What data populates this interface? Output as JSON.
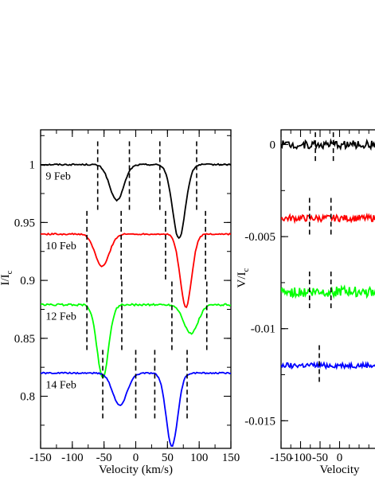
{
  "chart_data": [
    {
      "type": "line",
      "xlabel": "Velocity (km/s)",
      "ylabel": "I/I",
      "ylabel_sub": "c",
      "xlim": [
        -150,
        150
      ],
      "ylim": [
        0.755,
        1.03
      ],
      "xticks": [
        "-150",
        "-100",
        "-50",
        "0",
        "50",
        "100",
        "150"
      ],
      "xtick_values": [
        -150,
        -100,
        -50,
        0,
        50,
        100,
        150
      ],
      "yticks": [
        "0.8",
        "0.85",
        "0.9",
        "0.95",
        "1"
      ],
      "ytick_values": [
        0.8,
        0.85,
        0.9,
        0.95,
        1.0
      ],
      "series": [
        {
          "name": "9 Feb",
          "color": "#000000",
          "continuum": 1.0,
          "noise": 0.0006,
          "dips": [
            {
              "center": -30,
              "depth": 0.031,
              "width": 11
            },
            {
              "center": 68,
              "depth": 0.064,
              "width": 10
            }
          ],
          "markers": [
            -60,
            -10,
            38,
            96
          ],
          "label_x": -142,
          "label_y": 0.987
        },
        {
          "name": "10 Feb",
          "color": "#ff0000",
          "continuum": 0.94,
          "noise": 0.0006,
          "dips": [
            {
              "center": -53,
              "depth": 0.028,
              "width": 11
            },
            {
              "center": 79,
              "depth": 0.063,
              "width": 9
            }
          ],
          "markers": [
            -77,
            -23,
            47,
            110
          ],
          "label_x": -142,
          "label_y": 0.927
        },
        {
          "name": "12 Feb",
          "color": "#00ff00",
          "continuum": 0.879,
          "noise": 0.0008,
          "dips": [
            {
              "center": -52,
              "depth": 0.063,
              "width": 9
            },
            {
              "center": 87,
              "depth": 0.025,
              "width": 11
            }
          ],
          "markers": [
            -77,
            -22,
            57,
            112
          ],
          "label_x": -142,
          "label_y": 0.866
        },
        {
          "name": "14 Feb",
          "color": "#0000ff",
          "continuum": 0.82,
          "noise": 0.0006,
          "dips": [
            {
              "center": -25,
              "depth": 0.028,
              "width": 11
            },
            {
              "center": 57,
              "depth": 0.063,
              "width": 9
            }
          ],
          "markers": [
            -52,
            0,
            30,
            81
          ],
          "label_x": -142,
          "label_y": 0.807
        }
      ]
    },
    {
      "type": "line",
      "xlabel": "Velocity",
      "ylabel": "V/I",
      "ylabel_sub": "c",
      "xlim": [
        -150,
        150
      ],
      "ylim": [
        -0.0165,
        0.0008
      ],
      "xticks": [
        "-150",
        "-100",
        "-50",
        "0"
      ],
      "xtick_values": [
        -150,
        -100,
        -50,
        0
      ],
      "yticks": [
        "-0.015",
        "-0.01",
        "-0.005",
        "0"
      ],
      "ytick_values": [
        -0.015,
        -0.01,
        -0.005,
        0
      ],
      "series": [
        {
          "name": "",
          "color": "#000000",
          "offset": 0.0,
          "noise": 0.00022,
          "markers": [
            -62,
            -16
          ]
        },
        {
          "name": "",
          "color": "#ff0000",
          "offset": -0.004,
          "noise": 0.00018,
          "markers": [
            -77,
            -22
          ]
        },
        {
          "name": "",
          "color": "#00ff00",
          "offset": -0.008,
          "noise": 0.00028,
          "markers": [
            -77,
            -22
          ]
        },
        {
          "name": "",
          "color": "#0000ff",
          "offset": -0.012,
          "noise": 0.00014,
          "markers": [
            -52
          ]
        }
      ]
    }
  ]
}
